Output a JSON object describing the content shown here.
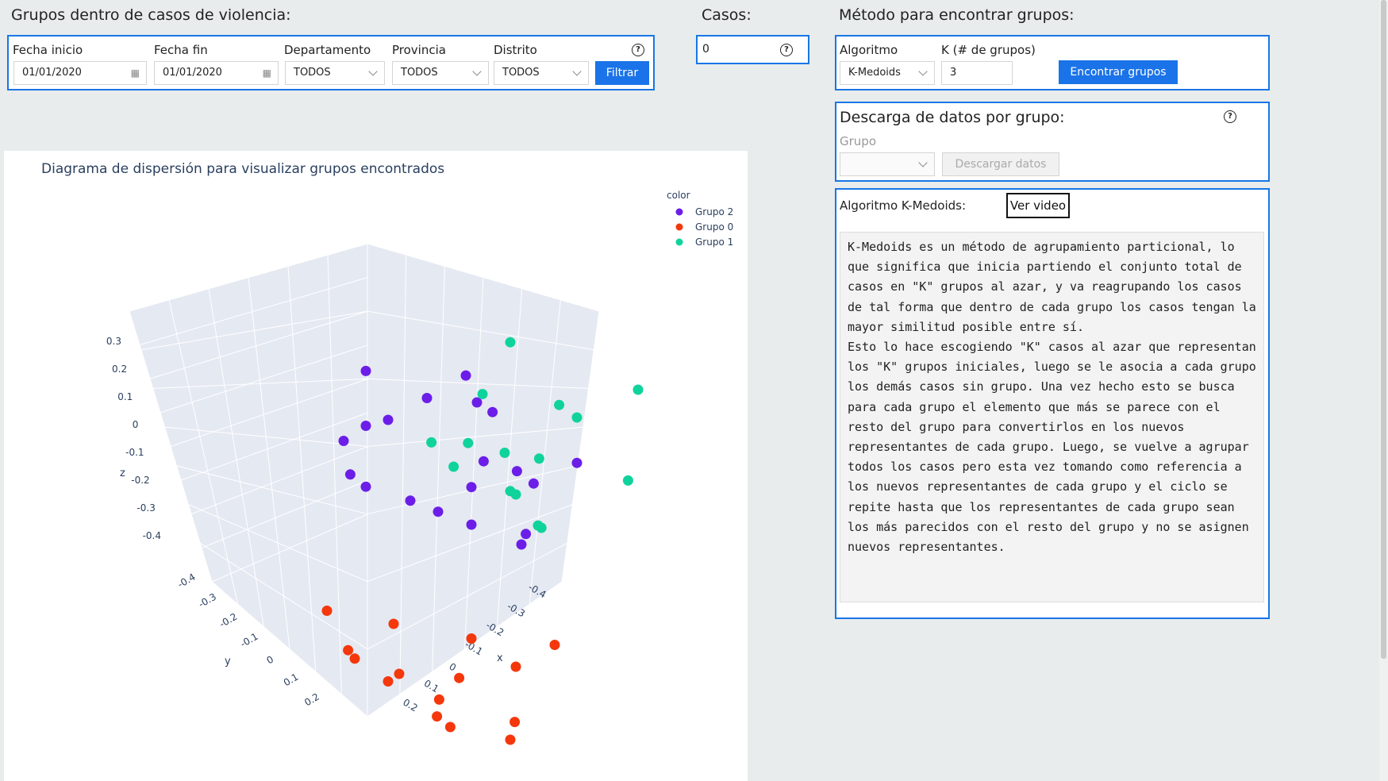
{
  "header": {
    "title": "Grupos dentro de casos de violencia:",
    "cases_title": "Casos:",
    "method_title": "Método para encontrar grupos:"
  },
  "filters": {
    "start_label": "Fecha inicio",
    "start_value": "01/01/2020",
    "end_label": "Fecha fin",
    "end_value": "01/01/2020",
    "department_label": "Departamento",
    "department_value": "TODOS",
    "province_label": "Provincia",
    "province_value": "TODOS",
    "district_label": "Distrito",
    "district_value": "TODOS",
    "filter_button": "Filtrar",
    "help_icon": "?"
  },
  "cases": {
    "value": "0",
    "help_icon": "?"
  },
  "method": {
    "algorithm_label": "Algoritmo",
    "algorithm_value": "K-Medoids",
    "k_label": "K (# de grupos)",
    "k_value": "3",
    "find_button": "Encontrar grupos"
  },
  "download": {
    "title": "Descarga de datos por grupo:",
    "group_label": "Grupo",
    "group_value": "",
    "download_button": "Descargar datos",
    "help_icon": "?"
  },
  "algorithm_info": {
    "title": "Algoritmo K-Medoids:",
    "video_button": "Ver video",
    "description": "K-Medoids es un método de agrupamiento particional, lo que significa que inicia partiendo el conjunto total de casos en \"K\" grupos al azar, y va reagrupando los casos de tal forma que dentro de cada grupo los casos tengan la mayor similitud posible entre sí.\nEsto lo hace escogiendo \"K\" casos al azar que representan los \"K\" grupos iniciales, luego se le asocia a cada grupo los demás casos sin grupo. Una vez hecho esto se busca para cada grupo el elemento que más se parece con el resto del grupo para convertirlos en los nuevos representantes de cada grupo. Luego, se vuelve a agrupar todos los casos pero esta vez tomando como referencia a los nuevos representantes de cada grupo y el ciclo se repite hasta que los representantes de cada grupo sean los más parecidos con el resto del grupo y no se asignen nuevos representantes."
  },
  "chart_data": {
    "type": "scatter",
    "title": "Diagrama de dispersión para visualizar grupos encontrados",
    "legend_title": "color",
    "legend_position": "top-right",
    "axes": {
      "z": {
        "label": "z",
        "ticks": [
          "0.3",
          "0.2",
          "0.1",
          "0",
          "-0.1",
          "-0.2",
          "-0.3",
          "-0.4"
        ]
      },
      "y": {
        "label": "y",
        "ticks": [
          "-0.4",
          "-0.3",
          "-0.2",
          "-0.1",
          "0",
          "0.1",
          "0.2"
        ]
      },
      "x": {
        "label": "x",
        "ticks": [
          "-0.4",
          "-0.3",
          "-0.2",
          "-0.1",
          "0",
          "0.1",
          "0.2"
        ]
      }
    },
    "series": [
      {
        "name": "Grupo 2",
        "color": "#6c1ee8",
        "points": [
          [
            0.12,
            -0.4,
            0.0
          ],
          [
            -0.05,
            -0.35,
            0.12
          ],
          [
            0.0,
            -0.3,
            0.1
          ],
          [
            -0.1,
            -0.2,
            0.05
          ],
          [
            -0.15,
            -0.15,
            0.0
          ],
          [
            0.02,
            -0.25,
            -0.05
          ],
          [
            0.05,
            -0.2,
            -0.1
          ],
          [
            -0.08,
            -0.1,
            -0.05
          ],
          [
            0.1,
            -0.28,
            -0.12
          ],
          [
            -0.2,
            -0.3,
            0.08
          ],
          [
            0.08,
            -0.05,
            -0.02
          ],
          [
            -0.12,
            -0.3,
            -0.15
          ],
          [
            0.15,
            -0.22,
            0.02
          ],
          [
            0.0,
            -0.15,
            0.15
          ],
          [
            -0.05,
            -0.05,
            0.1
          ],
          [
            0.06,
            -0.32,
            -0.02
          ],
          [
            -0.18,
            -0.22,
            -0.1
          ],
          [
            0.2,
            -0.1,
            -0.05
          ],
          [
            -0.02,
            -0.38,
            0.05
          ],
          [
            0.12,
            -0.12,
            0.08
          ]
        ]
      },
      {
        "name": "Grupo 0",
        "color": "#f4380c",
        "points": [
          [
            0.2,
            0.05,
            -0.2
          ],
          [
            0.1,
            0.1,
            -0.3
          ],
          [
            0.25,
            0.0,
            -0.25
          ],
          [
            0.0,
            0.15,
            -0.2
          ],
          [
            0.3,
            0.1,
            -0.35
          ],
          [
            0.15,
            0.2,
            -0.15
          ],
          [
            0.05,
            0.05,
            -0.35
          ],
          [
            0.22,
            0.18,
            -0.28
          ],
          [
            0.35,
            0.05,
            -0.15
          ],
          [
            0.12,
            0.02,
            -0.4
          ],
          [
            0.28,
            0.22,
            -0.2
          ],
          [
            0.08,
            0.2,
            -0.25
          ],
          [
            0.32,
            0.12,
            -0.3
          ],
          [
            0.18,
            0.08,
            -0.38
          ],
          [
            0.02,
            0.12,
            -0.28
          ]
        ]
      },
      {
        "name": "Grupo 1",
        "color": "#10d39c",
        "points": [
          [
            0.3,
            -0.1,
            0.25
          ],
          [
            0.2,
            -0.05,
            0.15
          ],
          [
            0.25,
            0.0,
            0.1
          ],
          [
            0.1,
            -0.15,
            0.2
          ],
          [
            0.35,
            -0.2,
            0.3
          ],
          [
            0.18,
            -0.1,
            0.05
          ],
          [
            0.28,
            -0.02,
            0.18
          ],
          [
            0.15,
            0.02,
            0.12
          ],
          [
            0.22,
            -0.18,
            0.22
          ],
          [
            0.32,
            0.05,
            0.08
          ],
          [
            0.05,
            -0.08,
            0.1
          ],
          [
            0.38,
            -0.12,
            0.15
          ],
          [
            0.12,
            -0.2,
            0.3
          ],
          [
            0.26,
            -0.06,
            0.02
          ],
          [
            0.2,
            0.06,
            0.2
          ]
        ]
      }
    ]
  }
}
